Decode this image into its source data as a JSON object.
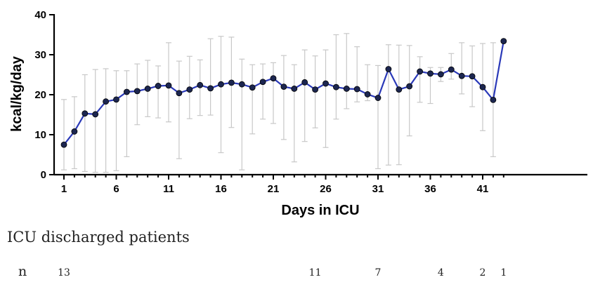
{
  "chart_data": {
    "type": "line",
    "xlabel": "Days in ICU",
    "ylabel": "kcal/kg/day",
    "xlim": [
      1,
      43
    ],
    "ylim": [
      0,
      40
    ],
    "x_ticks": [
      1,
      6,
      11,
      16,
      21,
      26,
      31,
      36,
      41
    ],
    "y_ticks": [
      0,
      10,
      20,
      30,
      40
    ],
    "x_tick_labels": [
      "1",
      "6",
      "11",
      "16",
      "21",
      "26",
      "31",
      "36",
      "41"
    ],
    "y_tick_labels": [
      "0",
      "10",
      "20",
      "30",
      "40"
    ],
    "series": [
      {
        "x": [
          1,
          2,
          3,
          4,
          5,
          6,
          7,
          8,
          9,
          10,
          11,
          12,
          13,
          14,
          15,
          16,
          17,
          18,
          19,
          20,
          21,
          22,
          23,
          24,
          25,
          26,
          27,
          28,
          29,
          30,
          31,
          32,
          33,
          34,
          35,
          36,
          37,
          38,
          39,
          40,
          41,
          42,
          43
        ],
        "values": [
          7.5,
          10.8,
          15.3,
          15.1,
          18.3,
          18.8,
          20.7,
          20.9,
          21.5,
          22.2,
          22.3,
          20.4,
          21.3,
          22.4,
          21.6,
          22.6,
          23.0,
          22.6,
          21.8,
          23.2,
          24.1,
          22.0,
          21.5,
          23.1,
          21.3,
          22.8,
          21.9,
          21.5,
          21.4,
          20.1,
          19.2,
          26.4,
          21.3,
          22.1,
          25.8,
          25.3,
          25.1,
          26.3,
          24.7,
          24.6,
          21.9,
          18.7,
          33.4
        ],
        "error_low": [
          1.2,
          1.5,
          0.8,
          0.6,
          0.6,
          1.0,
          4.5,
          12.5,
          14.5,
          14.2,
          13.2,
          4.0,
          14.0,
          14.8,
          14.9,
          5.5,
          11.8,
          1.2,
          10.2,
          13.9,
          12.8,
          8.8,
          3.2,
          8.3,
          11.7,
          6.8,
          13.9,
          16.5,
          18.2,
          18.5,
          1.5,
          2.4,
          2.5,
          9.7,
          18.1,
          17.8,
          23.3,
          23.9,
          20.2,
          17.0,
          11.0,
          4.5,
          33.4
        ],
        "error_high": [
          18.8,
          19.5,
          25.0,
          26.3,
          26.5,
          26.0,
          26.0,
          27.7,
          28.6,
          27.2,
          33.0,
          28.4,
          29.6,
          28.7,
          34.0,
          34.6,
          34.4,
          28.9,
          27.5,
          27.7,
          28.0,
          29.8,
          27.5,
          31.2,
          29.7,
          31.2,
          35.0,
          35.3,
          32.0,
          27.5,
          27.3,
          32.5,
          32.4,
          32.3,
          29.5,
          26.8,
          26.8,
          30.3,
          33.0,
          32.2,
          32.8,
          33.0,
          33.4
        ]
      }
    ],
    "grid": false,
    "legend": "none"
  },
  "discharge": {
    "title": "ICU discharged patients",
    "n_label": "n",
    "counts": [
      {
        "day": 1,
        "value": "13"
      },
      {
        "day": 25,
        "value": "11"
      },
      {
        "day": 31,
        "value": "7"
      },
      {
        "day": 37,
        "value": "4"
      },
      {
        "day": 41,
        "value": "2"
      },
      {
        "day": 43,
        "value": "1"
      }
    ]
  },
  "colors": {
    "line": "#2a39b8",
    "marker": "#1c2650",
    "error_bar": "#c8c8c8"
  }
}
